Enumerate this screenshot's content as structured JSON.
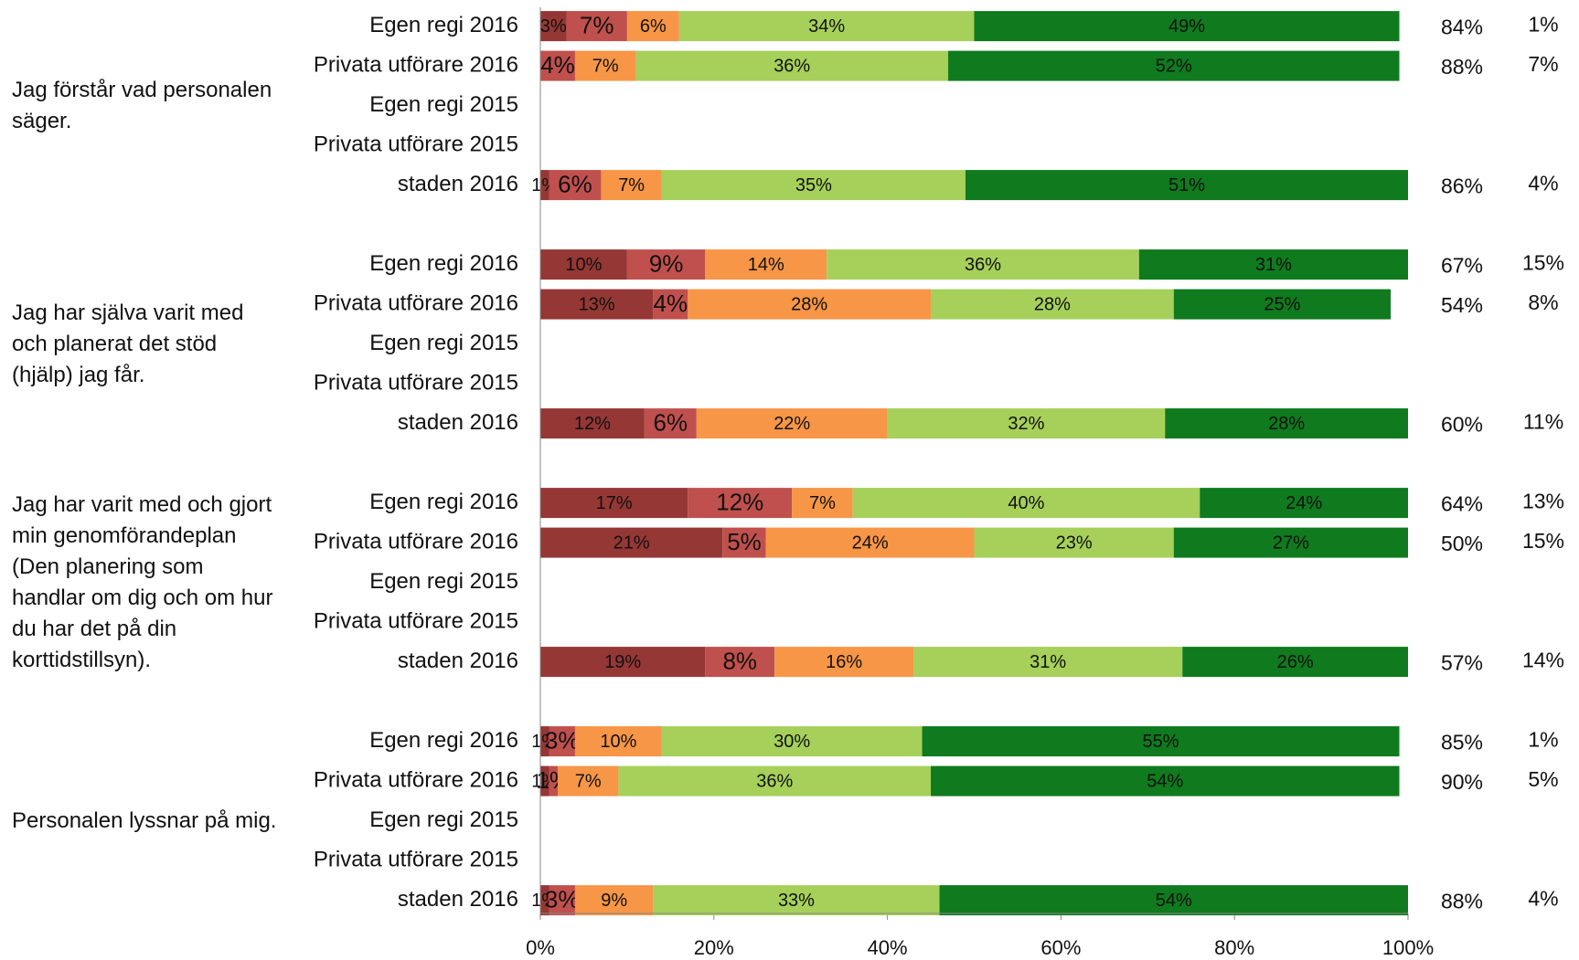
{
  "chart_data": {
    "type": "stacked-barh",
    "groups": [
      "Jag förstår vad personalen säger.",
      "Jag har själva varit med och planerat det stöd (hjälp) jag får.",
      "Jag har varit med och gjort min genomförandeplan (Den planering som handlar om dig och om hur du har det på din korttidstillsyn).",
      "Personalen lyssnar på mig."
    ],
    "categories": [
      "Egen regi 2016",
      "Privata utförare 2016",
      "Egen regi 2015",
      "Privata utförare 2015",
      "staden 2016",
      "Egen regi 2016",
      "Privata utförare 2016",
      "Egen regi 2015",
      "Privata utförare 2015",
      "staden 2016",
      "Egen regi 2016",
      "Privata utförare 2016",
      "Egen regi 2015",
      "Privata utförare 2015",
      "staden 2016",
      "Egen regi 2016",
      "Privata utförare 2016",
      "Egen regi 2015",
      "Privata utförare 2015",
      "staden 2016"
    ],
    "series": [
      {
        "color": "#953735",
        "values": [
          3,
          null,
          null,
          null,
          1,
          10,
          13,
          null,
          null,
          12,
          17,
          21,
          null,
          null,
          19,
          1,
          1,
          null,
          null,
          1
        ],
        "value_labels": [
          "3%",
          null,
          null,
          null,
          "1%",
          "10%",
          "13%",
          null,
          null,
          "12%",
          "17%",
          "21%",
          null,
          null,
          "19%",
          "1%",
          "1%",
          null,
          null,
          "1%"
        ]
      },
      {
        "color": "#c0504d",
        "values": [
          7,
          4,
          null,
          null,
          6,
          9,
          4,
          null,
          null,
          6,
          12,
          5,
          null,
          null,
          8,
          3,
          1,
          null,
          null,
          3
        ],
        "value_labels": [
          "7%",
          "4%",
          null,
          null,
          "6%",
          "9%",
          "4%",
          null,
          null,
          "6%",
          "12%",
          "5%",
          null,
          null,
          "8%",
          "3%",
          "1%",
          null,
          null,
          "3%"
        ]
      },
      {
        "color": "#f79646",
        "values": [
          6,
          7,
          null,
          null,
          7,
          14,
          28,
          null,
          null,
          22,
          7,
          24,
          null,
          null,
          16,
          10,
          7,
          null,
          null,
          9
        ],
        "value_labels": [
          "6%",
          "7%",
          null,
          null,
          "7%",
          "14%",
          "28%",
          null,
          null,
          "22%",
          "7%",
          "24%",
          null,
          null,
          "16%",
          "10%",
          "7%",
          null,
          null,
          "9%"
        ]
      },
      {
        "color": "#a6d05a",
        "values": [
          34,
          36,
          null,
          null,
          35,
          36,
          28,
          null,
          null,
          32,
          40,
          23,
          null,
          null,
          31,
          30,
          36,
          null,
          null,
          33
        ],
        "value_labels": [
          "34%",
          "36%",
          null,
          null,
          "35%",
          "36%",
          "28%",
          null,
          null,
          "32%",
          "40%",
          "23%",
          null,
          null,
          "31%",
          "30%",
          "36%",
          null,
          null,
          "33%"
        ]
      },
      {
        "color": "#0f7a1e",
        "values": [
          49,
          52,
          null,
          null,
          51,
          31,
          25,
          null,
          null,
          28,
          24,
          27,
          null,
          null,
          26,
          55,
          54,
          null,
          null,
          54
        ],
        "value_labels": [
          "49%",
          "52%",
          null,
          null,
          "51%",
          "31%",
          "25%",
          null,
          null,
          "28%",
          "24%",
          "27%",
          null,
          null,
          "26%",
          "55%",
          "54%",
          null,
          null,
          "54%"
        ]
      }
    ],
    "positive": {
      "values": [
        84,
        88,
        null,
        null,
        86,
        67,
        54,
        null,
        null,
        60,
        64,
        50,
        null,
        null,
        57,
        85,
        90,
        null,
        null,
        88
      ],
      "value_labels": [
        "84%",
        "88%",
        null,
        null,
        "86%",
        "67%",
        "54%",
        null,
        null,
        "60%",
        "64%",
        "50%",
        null,
        null,
        "57%",
        "85%",
        "90%",
        null,
        null,
        "88%"
      ]
    },
    "other": {
      "values": [
        1,
        7,
        null,
        null,
        4,
        15,
        8,
        null,
        null,
        11,
        13,
        15,
        null,
        null,
        14,
        1,
        5,
        null,
        null,
        4
      ],
      "value_labels": [
        "1%",
        "7%",
        null,
        null,
        "4%",
        "15%",
        "8%",
        null,
        null,
        "11%",
        "13%",
        "15%",
        null,
        null,
        "14%",
        "1%",
        "5%",
        null,
        null,
        "4%"
      ]
    },
    "xlim": [
      0,
      100
    ],
    "xticks": [
      {
        "value": 0,
        "label": "0%"
      },
      {
        "value": 20,
        "label": "20%"
      },
      {
        "value": 40,
        "label": "40%"
      },
      {
        "value": 60,
        "label": "60%"
      },
      {
        "value": 80,
        "label": "80%"
      },
      {
        "value": 100,
        "label": "100%"
      }
    ]
  }
}
